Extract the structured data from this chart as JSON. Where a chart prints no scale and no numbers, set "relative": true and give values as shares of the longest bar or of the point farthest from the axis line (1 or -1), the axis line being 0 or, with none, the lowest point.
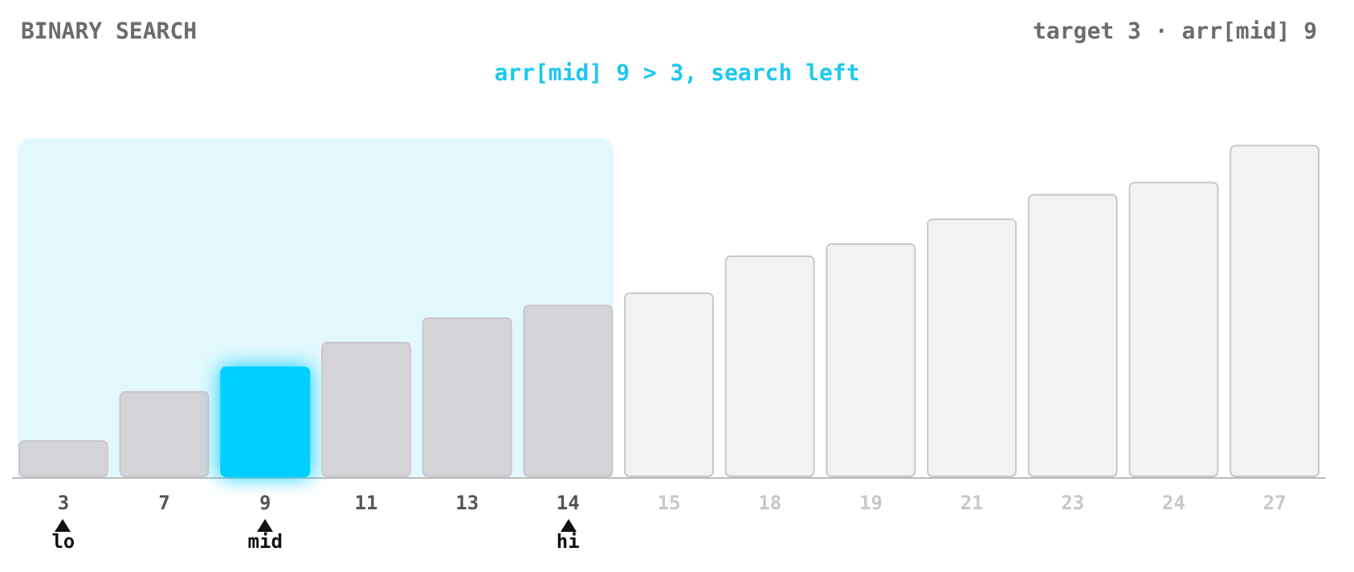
{
  "chart_data": {
    "type": "bar",
    "title": "BINARY SEARCH",
    "subtitle": "target 3 · arr[mid] 9",
    "relative": true,
    "categories": [
      "3",
      "7",
      "9",
      "11",
      "13",
      "14",
      "15",
      "18",
      "19",
      "21",
      "23",
      "24",
      "27"
    ],
    "values": [
      0.111,
      0.259,
      0.333,
      0.407,
      0.481,
      0.519,
      0.556,
      0.667,
      0.704,
      0.778,
      0.852,
      0.889,
      1
    ],
    "colors": [
      "#d4d3d8",
      "#d4d3d8",
      "#00cfff",
      "#d4d3d8",
      "#d4d3d8",
      "#d4d3d8",
      "#f2f2f2",
      "#f2f2f2",
      "#f2f2f2",
      "#f2f2f2",
      "#f2f2f2",
      "#f2f2f2",
      "#f2f2f2"
    ],
    "annotations": [
      "arr[mid] 9 > 3, search left",
      {
        "text": "lo",
        "x": "3",
        "y": 0
      },
      {
        "text": "mid",
        "x": "9",
        "y": 0
      },
      {
        "text": "hi",
        "x": "14",
        "y": 0
      }
    ]
  }
}
